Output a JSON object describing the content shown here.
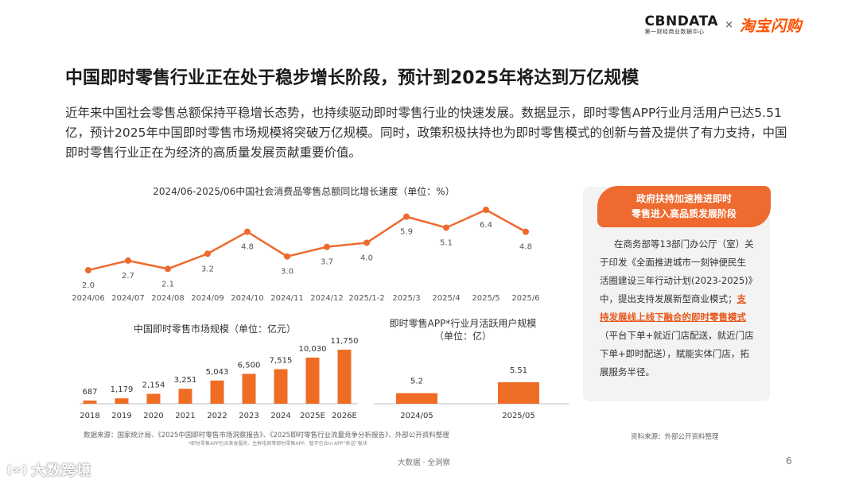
{
  "logo": {
    "cbn_main": "CBNDATA",
    "cbn_sub": "第一财经商业数据中心",
    "separator": "×",
    "partner": "淘宝闪购"
  },
  "title": "中国即时零售行业正在处于稳步增长阶段，预计到2025年将达到万亿规模",
  "intro": "近年来中国社会零售总额保持平稳增长态势，也持续驱动即时零售行业的快速发展。数据显示，即时零售APP行业月活用户已达5.51亿，预计2025年中国即时零售市场规模将突破万亿规模。同时，政策积极扶持也为即时零售模式的创新与普及提供了有力支持，中国即时零售行业正在为经济的高质量发展贡献重要价值。",
  "colors": {
    "accent": "#ee6a2e",
    "bar": "#ef6c25",
    "line": "#ee6a2e",
    "text": "#333333"
  },
  "chart_data": [
    {
      "type": "line",
      "title": "2024/06-2025/06中国社会消费品零售总额同比增长速度（单位：%）",
      "categories": [
        "2024/06",
        "2024/07",
        "2024/08",
        "2024/09",
        "2024/10",
        "2024/11",
        "2024/12",
        "2025/1-2",
        "2025/3",
        "2025/4",
        "2025/5",
        "2025/6"
      ],
      "values": [
        2.0,
        2.7,
        2.1,
        3.2,
        4.8,
        3.0,
        3.7,
        4.0,
        5.9,
        5.1,
        6.4,
        4.8
      ],
      "labels": [
        "2.0",
        "2.7",
        "2.1",
        "3.2",
        "4.8",
        "3.0",
        "3.7",
        "4.0",
        "5.9",
        "5.1",
        "6.4",
        "4.8"
      ]
    },
    {
      "type": "bar",
      "title": "中国即时零售市场规模（单位：亿元）",
      "categories": [
        "2018",
        "2019",
        "2020",
        "2021",
        "2022",
        "2023",
        "2024",
        "2025E",
        "2026E"
      ],
      "values": [
        687,
        1179,
        2154,
        3251,
        5043,
        6500,
        7515,
        10030,
        11750
      ],
      "labels": [
        "687",
        "1,179",
        "2,154",
        "3,251",
        "5,043",
        "6,500",
        "7,515",
        "10,030",
        "11,750"
      ]
    },
    {
      "type": "bar",
      "title": "即时零售APP*行业月活跃用户规模（单位：亿）",
      "categories": [
        "2024/05",
        "2025/05"
      ],
      "values": [
        5.2,
        5.51
      ],
      "labels": [
        "5.2",
        "5.51"
      ]
    }
  ],
  "side": {
    "heading": "政府扶持加速推进即时零售进入高品质发展阶段",
    "body_pre": "在商务部等13部门办公厅（室）关于印发《全面推进城市一刻钟便民生活圈建设三年行动计划(2023-2025)》中，提出支持发展新型商业模式；",
    "body_highlight": "支持发展线上线下融合的即时零售模式",
    "body_post": "（平台下单+就近门店配送，就近门店下单+即时配送），赋能实体门店，拓展服务半径。"
  },
  "source_left": "数据来源：国家统计局、《2025中国即时零售市场洞察报告》、《2025即时零售行业流量竞争分析报告》、外部公开资料整理",
  "footnote": "*即时零售APP包含美食服务、生鲜电商等即时零售APP，暂不包含in APP“秒送”板块",
  "source_right": "资料来源：外部公开资料整理",
  "footer": {
    "center": "大数据 · 全洞察",
    "page": "6"
  },
  "brand": {
    "mark": "(∞)",
    "name": "大数跨境"
  }
}
